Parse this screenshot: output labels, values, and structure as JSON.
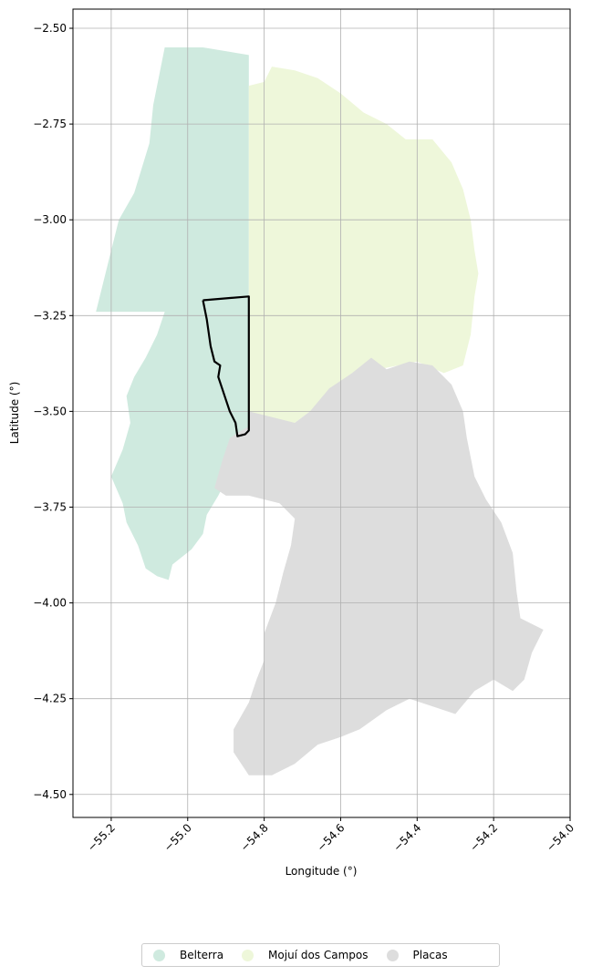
{
  "chart_data": {
    "type": "map",
    "xlabel": "Longitude (°)",
    "ylabel": "Latitude (°)",
    "xlim": [
      -55.3,
      -54.0
    ],
    "ylim": [
      -4.56,
      -2.45
    ],
    "x_ticks": [
      -55.2,
      -55.0,
      -54.8,
      -54.6,
      -54.4,
      -54.2,
      -54.0
    ],
    "x_tick_labels": [
      "−55.2",
      "−55.0",
      "−54.8",
      "−54.6",
      "−54.4",
      "−54.2",
      "−54.0"
    ],
    "y_ticks": [
      -2.5,
      -2.75,
      -3.0,
      -3.25,
      -3.5,
      -3.75,
      -4.0,
      -4.25,
      -4.5
    ],
    "y_tick_labels": [
      "−2.50",
      "−2.75",
      "−3.00",
      "−3.25",
      "−3.50",
      "−3.75",
      "−4.00",
      "−4.25",
      "−4.50"
    ],
    "grid": true,
    "legend_position": "bottom-center",
    "regions": [
      {
        "name": "Belterra",
        "color": "#cfeadf",
        "polygon": [
          [
            -55.06,
            -2.55
          ],
          [
            -54.96,
            -2.55
          ],
          [
            -54.84,
            -2.57
          ],
          [
            -54.84,
            -2.65
          ],
          [
            -54.84,
            -3.5
          ],
          [
            -54.83,
            -3.54
          ],
          [
            -54.86,
            -3.56
          ],
          [
            -54.88,
            -3.6
          ],
          [
            -54.89,
            -3.66
          ],
          [
            -54.92,
            -3.72
          ],
          [
            -54.95,
            -3.77
          ],
          [
            -54.96,
            -3.82
          ],
          [
            -54.99,
            -3.86
          ],
          [
            -55.04,
            -3.9
          ],
          [
            -55.05,
            -3.94
          ],
          [
            -55.08,
            -3.93
          ],
          [
            -55.11,
            -3.91
          ],
          [
            -55.13,
            -3.85
          ],
          [
            -55.16,
            -3.79
          ],
          [
            -55.17,
            -3.74
          ],
          [
            -55.2,
            -3.67
          ],
          [
            -55.17,
            -3.6
          ],
          [
            -55.15,
            -3.53
          ],
          [
            -55.16,
            -3.46
          ],
          [
            -55.14,
            -3.41
          ],
          [
            -55.11,
            -3.36
          ],
          [
            -55.08,
            -3.3
          ],
          [
            -55.06,
            -3.24
          ],
          [
            -55.14,
            -3.24
          ],
          [
            -55.24,
            -3.24
          ],
          [
            -55.21,
            -3.12
          ],
          [
            -55.18,
            -3.0
          ],
          [
            -55.14,
            -2.93
          ],
          [
            -55.1,
            -2.8
          ],
          [
            -55.09,
            -2.7
          ],
          [
            -55.07,
            -2.6
          ]
        ]
      },
      {
        "name": "Mojuí dos Campos",
        "color": "#eef7da",
        "polygon": [
          [
            -54.84,
            -2.65
          ],
          [
            -54.8,
            -2.64
          ],
          [
            -54.78,
            -2.6
          ],
          [
            -54.72,
            -2.61
          ],
          [
            -54.66,
            -2.63
          ],
          [
            -54.6,
            -2.67
          ],
          [
            -54.54,
            -2.72
          ],
          [
            -54.48,
            -2.75
          ],
          [
            -54.43,
            -2.79
          ],
          [
            -54.36,
            -2.79
          ],
          [
            -54.31,
            -2.85
          ],
          [
            -54.28,
            -2.92
          ],
          [
            -54.26,
            -3.0
          ],
          [
            -54.25,
            -3.08
          ],
          [
            -54.24,
            -3.14
          ],
          [
            -54.25,
            -3.2
          ],
          [
            -54.26,
            -3.3
          ],
          [
            -54.28,
            -3.38
          ],
          [
            -54.33,
            -3.4
          ],
          [
            -54.4,
            -3.37
          ],
          [
            -54.5,
            -3.39
          ],
          [
            -54.57,
            -3.4
          ],
          [
            -54.63,
            -3.45
          ],
          [
            -54.68,
            -3.5
          ],
          [
            -54.72,
            -3.53
          ],
          [
            -54.8,
            -3.52
          ],
          [
            -54.84,
            -3.5
          ]
        ]
      },
      {
        "name": "Placas",
        "color": "#dddddd",
        "polygon": [
          [
            -54.84,
            -3.5
          ],
          [
            -54.72,
            -3.53
          ],
          [
            -54.68,
            -3.5
          ],
          [
            -54.63,
            -3.44
          ],
          [
            -54.57,
            -3.4
          ],
          [
            -54.52,
            -3.36
          ],
          [
            -54.48,
            -3.39
          ],
          [
            -54.42,
            -3.37
          ],
          [
            -54.36,
            -3.38
          ],
          [
            -54.31,
            -3.43
          ],
          [
            -54.28,
            -3.5
          ],
          [
            -54.27,
            -3.57
          ],
          [
            -54.25,
            -3.67
          ],
          [
            -54.22,
            -3.73
          ],
          [
            -54.18,
            -3.79
          ],
          [
            -54.15,
            -3.87
          ],
          [
            -54.14,
            -3.97
          ],
          [
            -54.13,
            -4.04
          ],
          [
            -54.07,
            -4.07
          ],
          [
            -54.1,
            -4.13
          ],
          [
            -54.12,
            -4.2
          ],
          [
            -54.15,
            -4.23
          ],
          [
            -54.2,
            -4.2
          ],
          [
            -54.25,
            -4.23
          ],
          [
            -54.3,
            -4.29
          ],
          [
            -54.36,
            -4.27
          ],
          [
            -54.42,
            -4.25
          ],
          [
            -54.48,
            -4.28
          ],
          [
            -54.55,
            -4.33
          ],
          [
            -54.6,
            -4.35
          ],
          [
            -54.66,
            -4.37
          ],
          [
            -54.72,
            -4.42
          ],
          [
            -54.78,
            -4.45
          ],
          [
            -54.84,
            -4.45
          ],
          [
            -54.88,
            -4.39
          ],
          [
            -54.88,
            -4.33
          ],
          [
            -54.84,
            -4.26
          ],
          [
            -54.82,
            -4.2
          ],
          [
            -54.8,
            -4.15
          ],
          [
            -54.8,
            -4.08
          ],
          [
            -54.77,
            -4.0
          ],
          [
            -54.75,
            -3.92
          ],
          [
            -54.73,
            -3.85
          ],
          [
            -54.72,
            -3.78
          ],
          [
            -54.76,
            -3.74
          ],
          [
            -54.84,
            -3.72
          ],
          [
            -54.9,
            -3.72
          ],
          [
            -54.93,
            -3.7
          ],
          [
            -54.91,
            -3.63
          ],
          [
            -54.89,
            -3.57
          ],
          [
            -54.86,
            -3.55
          ],
          [
            -54.84,
            -3.54
          ]
        ]
      }
    ],
    "outlines": [
      {
        "name": "",
        "color": "#000000",
        "polyline": [
          [
            -54.96,
            -3.21
          ],
          [
            -54.9,
            -3.205
          ],
          [
            -54.84,
            -3.2
          ],
          [
            -54.84,
            -3.3
          ],
          [
            -54.84,
            -3.42
          ],
          [
            -54.84,
            -3.55
          ],
          [
            -54.85,
            -3.56
          ],
          [
            -54.87,
            -3.565
          ],
          [
            -54.875,
            -3.53
          ],
          [
            -54.89,
            -3.5
          ],
          [
            -54.9,
            -3.47
          ],
          [
            -54.91,
            -3.44
          ],
          [
            -54.92,
            -3.41
          ],
          [
            -54.915,
            -3.38
          ],
          [
            -54.93,
            -3.37
          ],
          [
            -54.94,
            -3.33
          ],
          [
            -54.95,
            -3.26
          ],
          [
            -54.96,
            -3.21
          ]
        ]
      }
    ],
    "legend": [
      {
        "label": "Belterra",
        "color": "#cfeadf"
      },
      {
        "label": "Mojuí dos Campos",
        "color": "#eef7da"
      },
      {
        "label": "Placas",
        "color": "#dddddd"
      }
    ]
  }
}
